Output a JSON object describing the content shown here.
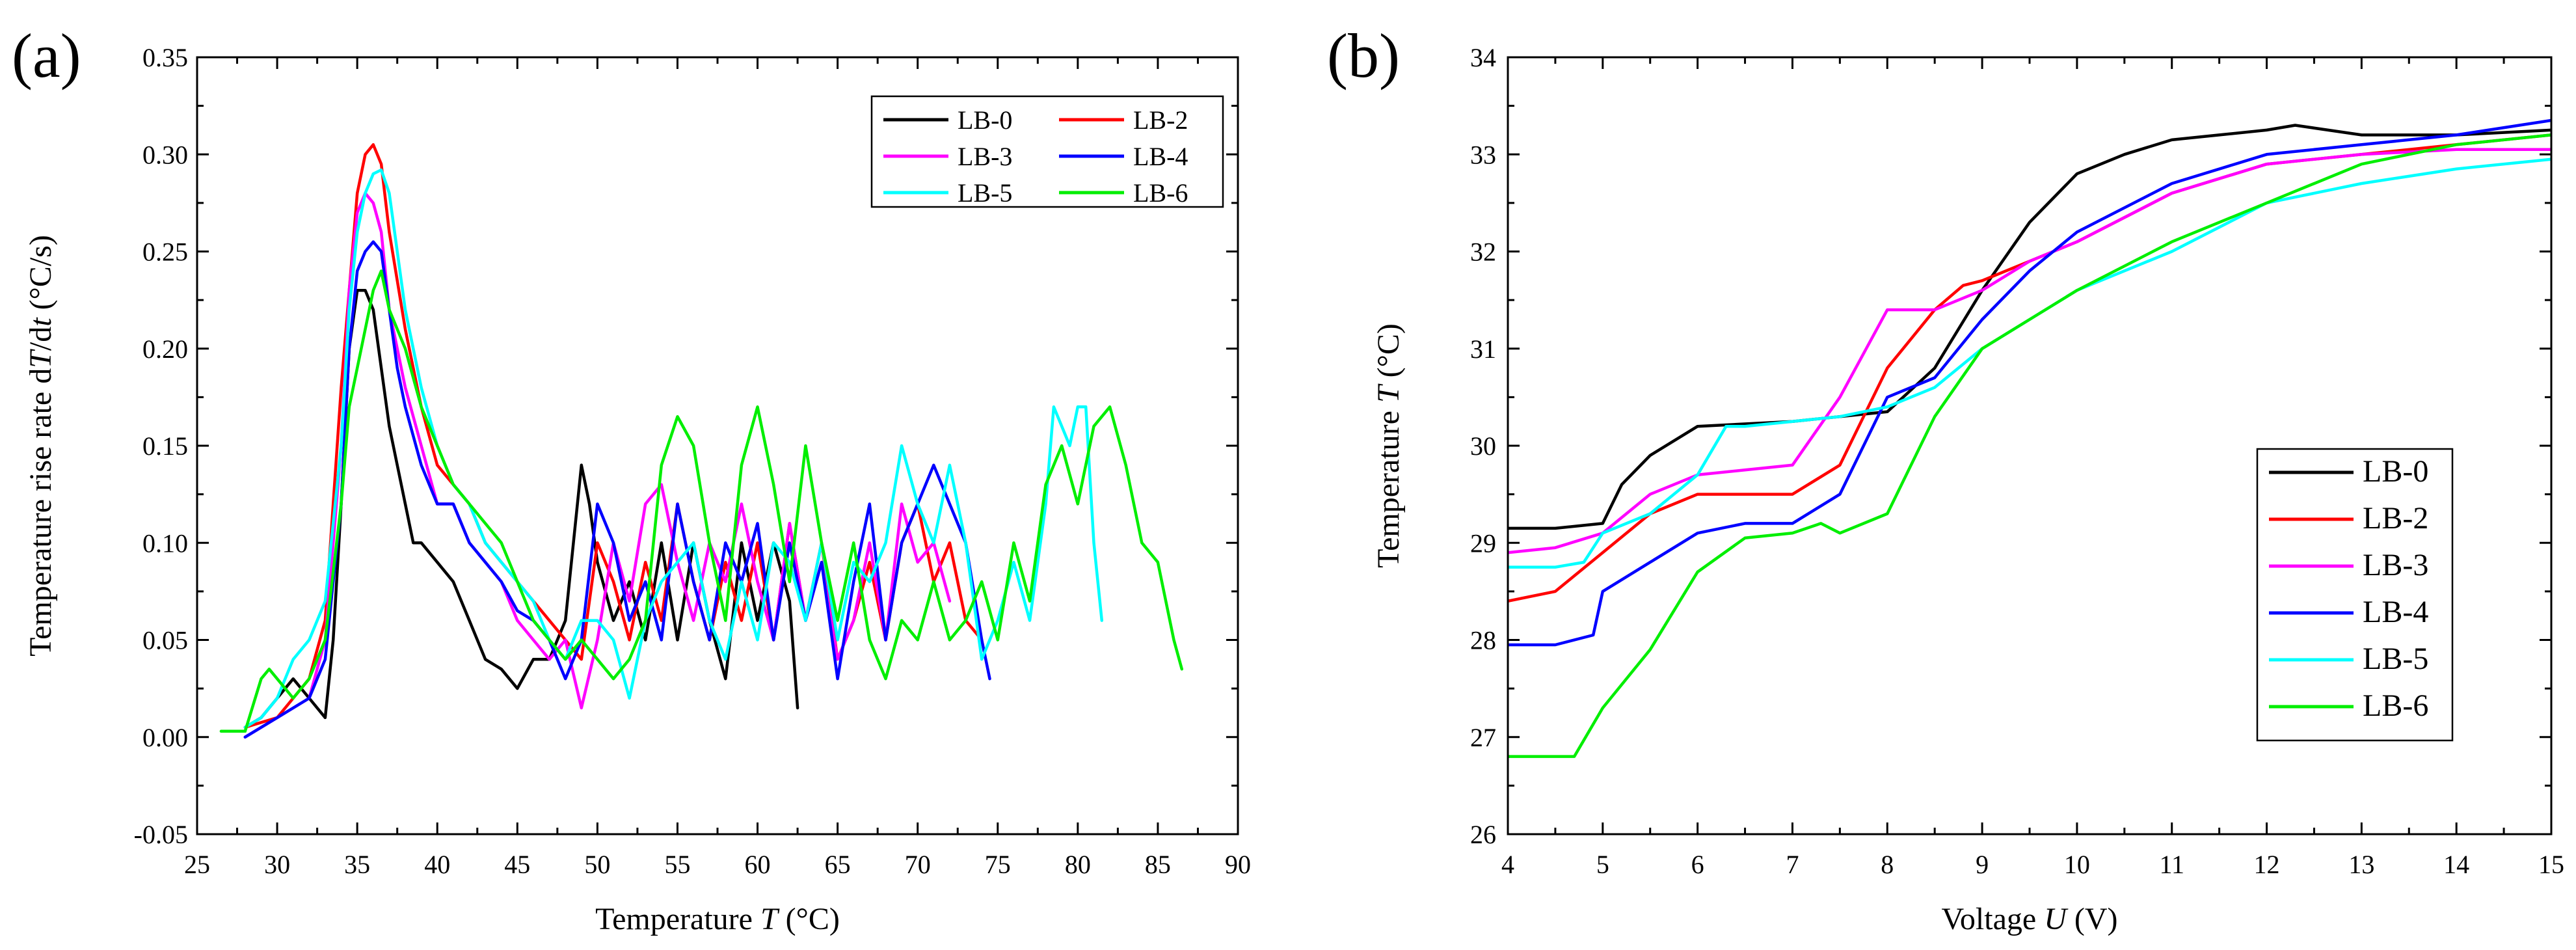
{
  "chart_data": [
    {
      "panel_label": "(a)",
      "type": "line",
      "title": "",
      "xlabel_prefix": "Temperature ",
      "xlabel_var": "T",
      "xlabel_suffix": " (°C)",
      "ylabel_prefix": "Temperature rise rate d",
      "ylabel_var1": "T",
      "ylabel_mid": "/d",
      "ylabel_var2": "t",
      "ylabel_suffix": " (°C/s)",
      "xlim": [
        25,
        90
      ],
      "ylim": [
        -0.05,
        0.35
      ],
      "xticks": [
        25,
        30,
        35,
        40,
        45,
        50,
        55,
        60,
        65,
        70,
        75,
        80,
        85,
        90
      ],
      "xtick_labels": [
        "25",
        "30",
        "35",
        "40",
        "45",
        "50",
        "55",
        "60",
        "65",
        "70",
        "75",
        "80",
        "85",
        "90"
      ],
      "yticks": [
        -0.05,
        0.0,
        0.05,
        0.1,
        0.15,
        0.2,
        0.25,
        0.3,
        0.35
      ],
      "ytick_labels": [
        "-0.05",
        "0.00",
        "0.05",
        "0.10",
        "0.15",
        "0.20",
        "0.25",
        "0.30",
        "0.35"
      ],
      "legend_position": "top-right",
      "series": [
        {
          "name": "LB-0",
          "color": "#000000",
          "x": [
            28,
            29,
            30,
            31,
            32,
            33,
            33.5,
            34,
            34.5,
            35,
            35.5,
            36,
            36.5,
            37,
            37.5,
            38,
            38.5,
            39,
            40,
            41,
            42,
            43,
            44,
            45,
            46,
            47,
            48,
            48.5,
            49,
            49.5,
            50,
            51,
            52,
            53,
            54,
            55,
            56,
            57,
            58,
            59,
            60,
            61,
            62,
            62.5
          ],
          "y": [
            0.005,
            0.01,
            0.02,
            0.03,
            0.02,
            0.01,
            0.05,
            0.12,
            0.2,
            0.23,
            0.23,
            0.22,
            0.19,
            0.16,
            0.14,
            0.12,
            0.1,
            0.1,
            0.09,
            0.08,
            0.06,
            0.04,
            0.035,
            0.025,
            0.04,
            0.04,
            0.06,
            0.1,
            0.14,
            0.12,
            0.09,
            0.06,
            0.08,
            0.05,
            0.1,
            0.05,
            0.1,
            0.06,
            0.03,
            0.1,
            0.06,
            0.1,
            0.07,
            0.015
          ]
        },
        {
          "name": "LB-2",
          "color": "#ff0000",
          "x": [
            28,
            30,
            31,
            32,
            33,
            34,
            35,
            35.5,
            36,
            36.5,
            37,
            38,
            39,
            40,
            41,
            42,
            43,
            44,
            45,
            46,
            47,
            48,
            49,
            50,
            51,
            52,
            53,
            54,
            55,
            56,
            57,
            58,
            59,
            60,
            61,
            62,
            63,
            64,
            65,
            66,
            67,
            68,
            69,
            70,
            71,
            72,
            73,
            74
          ],
          "y": [
            0.005,
            0.01,
            0.02,
            0.03,
            0.06,
            0.18,
            0.28,
            0.3,
            0.305,
            0.295,
            0.26,
            0.21,
            0.17,
            0.14,
            0.13,
            0.12,
            0.1,
            0.09,
            0.08,
            0.07,
            0.06,
            0.05,
            0.04,
            0.1,
            0.08,
            0.05,
            0.09,
            0.06,
            0.12,
            0.08,
            0.05,
            0.09,
            0.06,
            0.1,
            0.05,
            0.11,
            0.06,
            0.1,
            0.04,
            0.06,
            0.09,
            0.05,
            0.1,
            0.12,
            0.08,
            0.1,
            0.06,
            0.05
          ]
        },
        {
          "name": "LB-3",
          "color": "#ff00ff",
          "x": [
            28,
            30,
            31,
            32,
            33,
            34,
            34.5,
            35,
            35.5,
            36,
            36.5,
            37,
            38,
            39,
            40,
            41,
            42,
            43,
            44,
            45,
            46,
            47,
            48,
            49,
            50,
            51,
            52,
            53,
            54,
            55,
            56,
            57,
            58,
            59,
            60,
            61,
            62,
            63,
            64,
            65,
            66,
            67,
            68,
            69,
            70,
            71,
            72
          ],
          "y": [
            0.0,
            0.01,
            0.015,
            0.02,
            0.05,
            0.15,
            0.23,
            0.27,
            0.28,
            0.275,
            0.26,
            0.22,
            0.18,
            0.15,
            0.12,
            0.12,
            0.1,
            0.09,
            0.08,
            0.06,
            0.05,
            0.04,
            0.05,
            0.015,
            0.05,
            0.1,
            0.07,
            0.12,
            0.13,
            0.09,
            0.06,
            0.1,
            0.08,
            0.12,
            0.08,
            0.05,
            0.11,
            0.06,
            0.09,
            0.04,
            0.06,
            0.1,
            0.05,
            0.12,
            0.09,
            0.1,
            0.07
          ]
        },
        {
          "name": "LB-4",
          "color": "#0000ff",
          "x": [
            28,
            29,
            30,
            31,
            32,
            33,
            34,
            34.5,
            35,
            35.5,
            36,
            36.5,
            37,
            37.5,
            38,
            39,
            40,
            41,
            42,
            43,
            44,
            45,
            46,
            47,
            48,
            49,
            50,
            51,
            52,
            53,
            54,
            55,
            56,
            57,
            58,
            59,
            60,
            61,
            62,
            63,
            64,
            65,
            66,
            67,
            68,
            69,
            70,
            71,
            72,
            73,
            74,
            74.5
          ],
          "y": [
            0.0,
            0.005,
            0.01,
            0.015,
            0.02,
            0.04,
            0.12,
            0.2,
            0.24,
            0.25,
            0.255,
            0.25,
            0.22,
            0.19,
            0.17,
            0.14,
            0.12,
            0.12,
            0.1,
            0.09,
            0.08,
            0.065,
            0.06,
            0.05,
            0.03,
            0.05,
            0.12,
            0.1,
            0.06,
            0.08,
            0.05,
            0.12,
            0.08,
            0.05,
            0.1,
            0.08,
            0.11,
            0.05,
            0.1,
            0.06,
            0.09,
            0.03,
            0.08,
            0.12,
            0.05,
            0.1,
            0.12,
            0.14,
            0.12,
            0.1,
            0.05,
            0.03
          ]
        },
        {
          "name": "LB-5",
          "color": "#00ffff",
          "x": [
            28,
            29,
            30,
            31,
            32,
            33,
            34,
            34.5,
            35,
            35.5,
            36,
            36.5,
            37,
            37.5,
            38,
            39,
            40,
            41,
            42,
            43,
            44,
            45,
            46,
            47,
            48,
            49,
            50,
            51,
            52,
            53,
            54,
            55,
            56,
            57,
            58,
            59,
            60,
            61,
            62,
            63,
            64,
            65,
            66,
            67,
            68,
            69,
            70,
            71,
            72,
            73,
            74,
            75,
            76,
            77,
            78,
            78.5,
            79,
            79.5,
            80,
            80.5,
            81,
            81.5
          ],
          "y": [
            0.005,
            0.01,
            0.02,
            0.04,
            0.05,
            0.07,
            0.15,
            0.22,
            0.26,
            0.28,
            0.29,
            0.292,
            0.28,
            0.25,
            0.22,
            0.18,
            0.15,
            0.13,
            0.12,
            0.1,
            0.09,
            0.08,
            0.07,
            0.05,
            0.04,
            0.06,
            0.06,
            0.05,
            0.02,
            0.06,
            0.08,
            0.09,
            0.1,
            0.06,
            0.04,
            0.08,
            0.05,
            0.1,
            0.09,
            0.06,
            0.1,
            0.05,
            0.09,
            0.08,
            0.1,
            0.15,
            0.12,
            0.1,
            0.14,
            0.1,
            0.04,
            0.06,
            0.09,
            0.06,
            0.12,
            0.17,
            0.16,
            0.15,
            0.17,
            0.17,
            0.1,
            0.06
          ]
        },
        {
          "name": "LB-6",
          "color": "#00ee00",
          "x": [
            26.5,
            27,
            28,
            29,
            29.5,
            30,
            31,
            32,
            33,
            34,
            34.5,
            35,
            35.5,
            36,
            36.5,
            37,
            38,
            39,
            40,
            41,
            42,
            43,
            44,
            45,
            46,
            47,
            48,
            49,
            50,
            51,
            52,
            53,
            54,
            55,
            56,
            57,
            58,
            59,
            60,
            61,
            62,
            63,
            64,
            65,
            66,
            67,
            68,
            69,
            70,
            71,
            72,
            73,
            74,
            75,
            76,
            77,
            78,
            79,
            80,
            81,
            82,
            83,
            84,
            85,
            85.5,
            86,
            86.5
          ],
          "y": [
            0.003,
            0.003,
            0.003,
            0.03,
            0.035,
            0.03,
            0.02,
            0.03,
            0.05,
            0.12,
            0.17,
            0.19,
            0.21,
            0.23,
            0.24,
            0.22,
            0.2,
            0.17,
            0.15,
            0.13,
            0.12,
            0.11,
            0.1,
            0.08,
            0.06,
            0.05,
            0.04,
            0.05,
            0.04,
            0.03,
            0.04,
            0.06,
            0.14,
            0.165,
            0.15,
            0.1,
            0.06,
            0.14,
            0.17,
            0.13,
            0.08,
            0.15,
            0.1,
            0.06,
            0.1,
            0.05,
            0.03,
            0.06,
            0.05,
            0.08,
            0.05,
            0.06,
            0.08,
            0.05,
            0.1,
            0.07,
            0.13,
            0.15,
            0.12,
            0.16,
            0.17,
            0.14,
            0.1,
            0.09,
            0.07,
            0.05,
            0.035
          ]
        }
      ]
    },
    {
      "panel_label": "(b)",
      "type": "line",
      "title": "",
      "xlabel_prefix": "Voltage ",
      "xlabel_var": "U",
      "xlabel_suffix": " (V)",
      "ylabel_prefix": "Temperature ",
      "ylabel_var1": "T",
      "ylabel_mid": "",
      "ylabel_var2": "",
      "ylabel_suffix": " (°C)",
      "xlim": [
        4,
        15
      ],
      "ylim": [
        26,
        34
      ],
      "xticks": [
        4,
        5,
        6,
        7,
        8,
        9,
        10,
        11,
        12,
        13,
        14,
        15
      ],
      "xtick_labels": [
        "4",
        "5",
        "6",
        "7",
        "8",
        "9",
        "10",
        "11",
        "12",
        "13",
        "14",
        "15"
      ],
      "yticks": [
        26,
        27,
        28,
        29,
        30,
        31,
        32,
        33,
        34
      ],
      "ytick_labels": [
        "26",
        "27",
        "28",
        "29",
        "30",
        "31",
        "32",
        "33",
        "34"
      ],
      "legend_position": "bottom-right",
      "series": [
        {
          "name": "LB-0",
          "color": "#000000",
          "x": [
            4,
            4.5,
            5,
            5.2,
            5.5,
            6,
            7,
            7.5,
            8,
            8.5,
            9,
            9.5,
            10,
            10.5,
            11,
            11.5,
            12,
            12.3,
            13,
            14,
            15
          ],
          "y": [
            29.15,
            29.15,
            29.2,
            29.6,
            29.9,
            30.2,
            30.25,
            30.3,
            30.35,
            30.8,
            31.6,
            32.3,
            32.8,
            33.0,
            33.15,
            33.2,
            33.25,
            33.3,
            33.2,
            33.2,
            33.25
          ]
        },
        {
          "name": "LB-2",
          "color": "#ff0000",
          "x": [
            4,
            4.5,
            5,
            5.5,
            6,
            7,
            7.5,
            8,
            8.5,
            8.8,
            9,
            9.5,
            10,
            11,
            12,
            13,
            14,
            15
          ],
          "y": [
            28.4,
            28.5,
            28.9,
            29.3,
            29.5,
            29.5,
            29.8,
            30.8,
            31.4,
            31.65,
            31.7,
            31.9,
            32.1,
            32.6,
            32.9,
            33.0,
            33.1,
            33.2
          ]
        },
        {
          "name": "LB-3",
          "color": "#ff00ff",
          "x": [
            4,
            4.5,
            5,
            5.5,
            6,
            6.5,
            7,
            7.5,
            8,
            8.5,
            9,
            9.5,
            10,
            11,
            12,
            13,
            14,
            15
          ],
          "y": [
            28.9,
            28.95,
            29.1,
            29.5,
            29.7,
            29.75,
            29.8,
            30.5,
            31.4,
            31.4,
            31.6,
            31.9,
            32.1,
            32.6,
            32.9,
            33.0,
            33.05,
            33.05
          ]
        },
        {
          "name": "LB-4",
          "color": "#0000ff",
          "x": [
            4,
            4.5,
            4.9,
            5,
            5.5,
            6,
            6.5,
            7,
            7.5,
            8,
            8.5,
            9,
            9.5,
            10,
            11,
            12,
            13,
            14,
            15
          ],
          "y": [
            27.95,
            27.95,
            28.05,
            28.5,
            28.8,
            29.1,
            29.2,
            29.2,
            29.5,
            30.5,
            30.7,
            31.3,
            31.8,
            32.2,
            32.7,
            33.0,
            33.1,
            33.2,
            33.35
          ]
        },
        {
          "name": "LB-5",
          "color": "#00ffff",
          "x": [
            4,
            4.5,
            4.8,
            5,
            5.5,
            6,
            6.3,
            6.5,
            7,
            7.5,
            8,
            8.5,
            9,
            9.5,
            10,
            11,
            12,
            13,
            14,
            15
          ],
          "y": [
            28.75,
            28.75,
            28.8,
            29.1,
            29.3,
            29.7,
            30.2,
            30.2,
            30.25,
            30.3,
            30.4,
            30.6,
            31.0,
            31.3,
            31.6,
            32.0,
            32.5,
            32.7,
            32.85,
            32.95
          ]
        },
        {
          "name": "LB-6",
          "color": "#00ee00",
          "x": [
            4,
            4.5,
            4.7,
            5,
            5.5,
            6,
            6.5,
            7,
            7.3,
            7.5,
            8,
            8.5,
            9,
            9.5,
            10,
            11,
            12,
            13,
            14,
            15
          ],
          "y": [
            26.8,
            26.8,
            26.8,
            27.3,
            27.9,
            28.7,
            29.05,
            29.1,
            29.2,
            29.1,
            29.3,
            30.3,
            31.0,
            31.3,
            31.6,
            32.1,
            32.5,
            32.9,
            33.1,
            33.2
          ]
        }
      ]
    }
  ]
}
